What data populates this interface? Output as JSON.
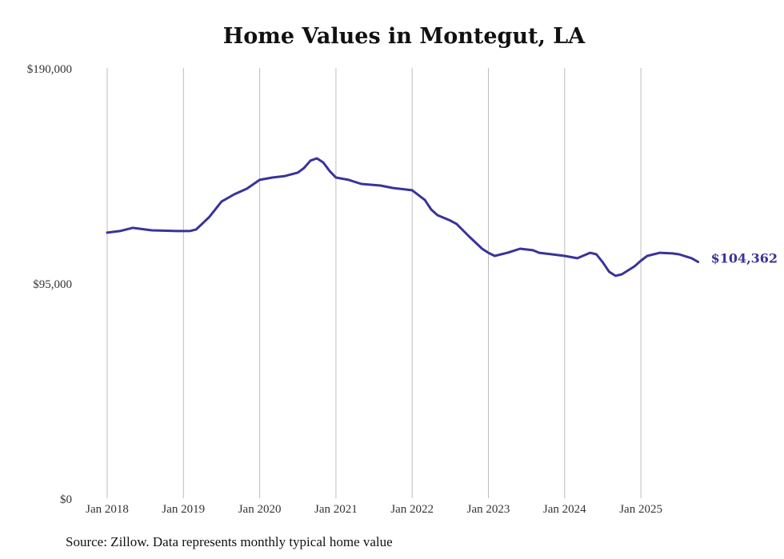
{
  "chart_data": {
    "type": "line",
    "title": "Home Values in Montegut, LA",
    "xlabel": "",
    "ylabel": "",
    "ylim": [
      0,
      190000
    ],
    "y_ticks": [
      {
        "value": 0,
        "label": "$0"
      },
      {
        "value": 95000,
        "label": "$95,000"
      },
      {
        "value": 190000,
        "label": "$190,000"
      }
    ],
    "x_ticks": [
      {
        "value": "2018-01",
        "label": "Jan 2018"
      },
      {
        "value": "2019-01",
        "label": "Jan 2019"
      },
      {
        "value": "2020-01",
        "label": "Jan 2020"
      },
      {
        "value": "2021-01",
        "label": "Jan 2021"
      },
      {
        "value": "2022-01",
        "label": "Jan 2022"
      },
      {
        "value": "2023-01",
        "label": "Jan 2023"
      },
      {
        "value": "2024-01",
        "label": "Jan 2024"
      },
      {
        "value": "2025-01",
        "label": "Jan 2025"
      }
    ],
    "grid": "vertical",
    "series": [
      {
        "name": "Typical home value",
        "color": "#3a3399",
        "points": [
          [
            "2018-01",
            117300
          ],
          [
            "2018-03",
            118000
          ],
          [
            "2018-05",
            119400
          ],
          [
            "2018-08",
            118300
          ],
          [
            "2018-12",
            118000
          ],
          [
            "2019-02",
            118000
          ],
          [
            "2019-03",
            118700
          ],
          [
            "2019-05",
            124000
          ],
          [
            "2019-07",
            131000
          ],
          [
            "2019-09",
            134200
          ],
          [
            "2019-11",
            136700
          ],
          [
            "2020-01",
            140600
          ],
          [
            "2020-03",
            141600
          ],
          [
            "2020-05",
            142300
          ],
          [
            "2020-07",
            143800
          ],
          [
            "2020-08",
            145900
          ],
          [
            "2020-09",
            149100
          ],
          [
            "2020-10",
            150100
          ],
          [
            "2020-11",
            148300
          ],
          [
            "2020-12",
            144500
          ],
          [
            "2021-01",
            141600
          ],
          [
            "2021-03",
            140600
          ],
          [
            "2021-05",
            138800
          ],
          [
            "2021-08",
            138100
          ],
          [
            "2021-10",
            137000
          ],
          [
            "2022-01",
            136000
          ],
          [
            "2022-03",
            131700
          ],
          [
            "2022-04",
            127500
          ],
          [
            "2022-05",
            125000
          ],
          [
            "2022-07",
            122600
          ],
          [
            "2022-08",
            121100
          ],
          [
            "2022-10",
            115500
          ],
          [
            "2022-12",
            110200
          ],
          [
            "2023-01",
            108400
          ],
          [
            "2023-02",
            107000
          ],
          [
            "2023-04",
            108400
          ],
          [
            "2023-06",
            110200
          ],
          [
            "2023-08",
            109500
          ],
          [
            "2023-09",
            108400
          ],
          [
            "2023-11",
            107700
          ],
          [
            "2024-01",
            107000
          ],
          [
            "2024-03",
            106000
          ],
          [
            "2024-05",
            108400
          ],
          [
            "2024-06",
            107700
          ],
          [
            "2024-07",
            104200
          ],
          [
            "2024-08",
            100000
          ],
          [
            "2024-09",
            98200
          ],
          [
            "2024-10",
            98900
          ],
          [
            "2024-12",
            102400
          ],
          [
            "2025-01",
            104900
          ],
          [
            "2025-02",
            107000
          ],
          [
            "2025-04",
            108400
          ],
          [
            "2025-06",
            108100
          ],
          [
            "2025-07",
            107700
          ],
          [
            "2025-09",
            106000
          ],
          [
            "2025-10",
            104362
          ]
        ]
      }
    ],
    "annotations": [
      {
        "text": "$104,362",
        "at": "last-point"
      }
    ]
  },
  "source": "Source: Zillow. Data represents monthly typical home value"
}
